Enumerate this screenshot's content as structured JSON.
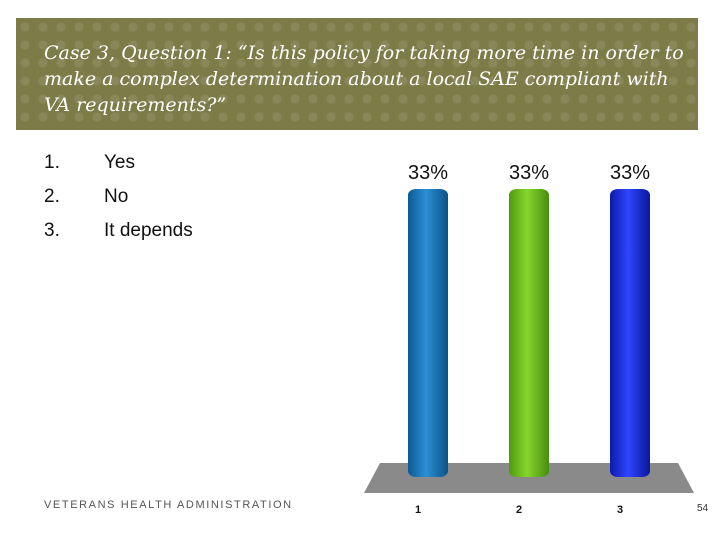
{
  "slide": {
    "title": "Case 3, Question 1: “Is this policy for taking more time in order to make a complex determination about a local SAE compliant with VA requirements?”",
    "options": [
      {
        "number": "1.",
        "label": "Yes"
      },
      {
        "number": "2.",
        "label": "No"
      },
      {
        "number": "3.",
        "label": "It depends"
      }
    ],
    "footer_org": "VETERANS HEALTH ADMINISTRATION",
    "page_number": "54"
  },
  "colors": {
    "banner": "#7d7b48",
    "floor": "#8a8a8a",
    "series": [
      "#1f7bbf",
      "#6fbf1e",
      "#1a2fe0"
    ]
  },
  "chart_data": {
    "type": "bar",
    "categories": [
      "1",
      "2",
      "3"
    ],
    "values": [
      33,
      33,
      33
    ],
    "data_labels": [
      "33%",
      "33%",
      "33%"
    ],
    "ylim": [
      0,
      33
    ],
    "title": "",
    "xlabel": "",
    "ylabel": "",
    "grid": false,
    "legend": "none"
  }
}
